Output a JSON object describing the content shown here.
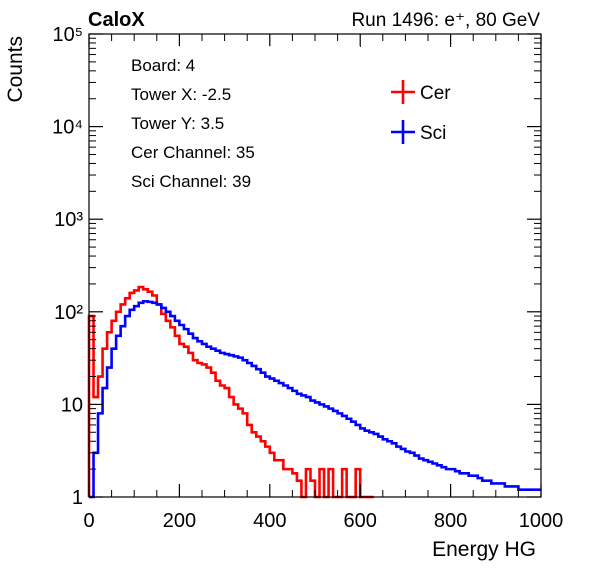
{
  "chart_data": {
    "type": "line",
    "title_left": "CaloX",
    "title_right": "Run 1496: e⁺, 80 GeV",
    "xlabel": "Energy HG",
    "ylabel": "Counts",
    "xlim": [
      0,
      1000
    ],
    "ylim": [
      1,
      100000
    ],
    "y_scale": "log",
    "x_ticks": [
      0,
      200,
      400,
      600,
      800,
      1000
    ],
    "y_ticks": [
      {
        "value": 1,
        "label": "1"
      },
      {
        "value": 10,
        "label": "10"
      },
      {
        "value": 100,
        "label": "10²"
      },
      {
        "value": 1000,
        "label": "10³"
      },
      {
        "value": 10000,
        "label": "10⁴"
      },
      {
        "value": 100000,
        "label": "10⁵"
      }
    ],
    "info_box": [
      "Board: 4",
      "Tower X: -2.5",
      "Tower Y: 3.5",
      "Cer Channel: 35",
      "Sci Channel: 39"
    ],
    "legend_position": "top-right",
    "series": [
      {
        "name": "Cer",
        "color": "#ff0000",
        "x": [
          0,
          10,
          20,
          30,
          40,
          50,
          60,
          70,
          80,
          90,
          100,
          110,
          120,
          130,
          140,
          150,
          160,
          170,
          180,
          190,
          200,
          210,
          220,
          230,
          240,
          250,
          260,
          270,
          280,
          290,
          300,
          310,
          320,
          330,
          340,
          350,
          360,
          370,
          380,
          390,
          400,
          410,
          420,
          430,
          440,
          450,
          460,
          470,
          480,
          490,
          500,
          510,
          520,
          530,
          540,
          550,
          560,
          570,
          580,
          590,
          600,
          610,
          620
        ],
        "y": [
          90,
          12,
          20,
          40,
          60,
          80,
          100,
          120,
          140,
          160,
          170,
          185,
          175,
          165,
          150,
          120,
          95,
          80,
          68,
          55,
          45,
          42,
          36,
          30,
          28,
          27,
          25,
          22,
          18,
          16,
          15,
          12,
          10,
          9,
          8,
          6,
          5,
          4.5,
          4,
          3.5,
          3,
          2.5,
          2.5,
          2,
          2,
          1.8,
          1.5,
          1,
          2,
          1.5,
          1,
          2,
          1,
          2,
          1,
          1,
          2,
          1,
          1,
          2,
          1,
          1,
          1
        ]
      },
      {
        "name": "Sci",
        "color": "#0000ff",
        "x": [
          0,
          10,
          20,
          30,
          40,
          50,
          60,
          70,
          80,
          90,
          100,
          110,
          120,
          130,
          140,
          150,
          160,
          170,
          180,
          190,
          200,
          210,
          220,
          230,
          240,
          250,
          260,
          270,
          280,
          290,
          300,
          310,
          320,
          330,
          340,
          350,
          360,
          370,
          380,
          390,
          400,
          410,
          420,
          430,
          440,
          450,
          460,
          470,
          480,
          490,
          500,
          510,
          520,
          530,
          540,
          550,
          560,
          570,
          580,
          590,
          600,
          610,
          620,
          630,
          640,
          650,
          660,
          670,
          680,
          690,
          700,
          710,
          720,
          730,
          740,
          750,
          760,
          770,
          780,
          790,
          800,
          810,
          820,
          830,
          840,
          850,
          860,
          870,
          880,
          890,
          900,
          910,
          920,
          930,
          940,
          950,
          960,
          970,
          980,
          990
        ],
        "y": [
          1,
          3,
          8,
          15,
          25,
          40,
          55,
          70,
          90,
          105,
          115,
          125,
          130,
          128,
          125,
          120,
          110,
          100,
          90,
          80,
          72,
          65,
          58,
          52,
          48,
          45,
          42,
          40,
          38,
          36,
          35,
          34,
          33,
          32,
          30,
          28,
          26,
          24,
          22,
          20,
          19,
          18,
          17,
          16,
          15,
          14,
          13,
          12.5,
          12,
          11,
          10.5,
          10,
          9.5,
          9,
          8.5,
          8,
          7.5,
          7,
          6.5,
          6,
          5.5,
          5.2,
          5,
          4.8,
          4.5,
          4.2,
          4,
          3.8,
          3.5,
          3.3,
          3.1,
          3,
          2.8,
          2.6,
          2.5,
          2.4,
          2.3,
          2.2,
          2.1,
          2,
          2,
          1.9,
          1.8,
          1.8,
          1.7,
          1.7,
          1.6,
          1.5,
          1.5,
          1.4,
          1.4,
          1.4,
          1.3,
          1.3,
          1.3,
          1.2,
          1.2,
          1.2,
          1.2,
          1.2
        ]
      }
    ]
  }
}
